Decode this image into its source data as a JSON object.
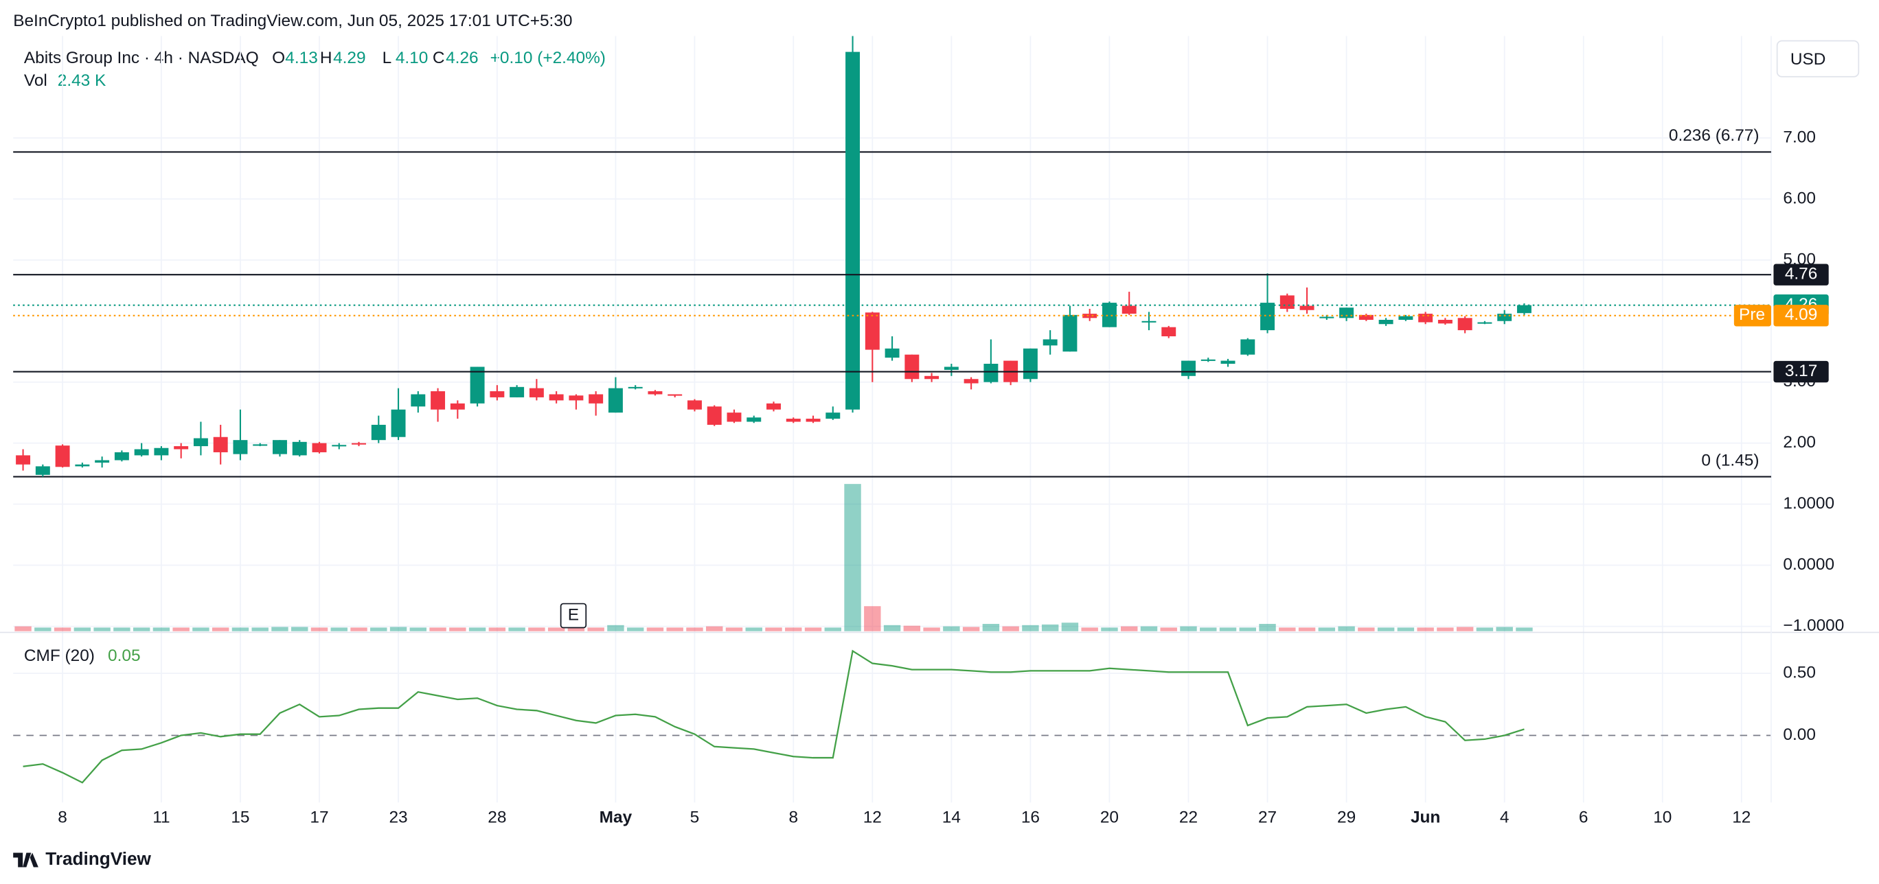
{
  "header": {
    "publisher": "BeInCrypto1 published on TradingView.com, Jun 05, 2025 17:01 UTC+5:30",
    "currency": "USD",
    "brand": "TradingView"
  },
  "chart_data": [
    {
      "type": "candlestick",
      "title": "Abits Group Inc · 4h · NASDAQ",
      "ohlc": [
        {
          "label": "O",
          "value": 4.13
        },
        {
          "label": "H",
          "value": 4.29
        },
        {
          "label": "L",
          "value": 4.1,
          "value_label": "4.10"
        },
        {
          "label": "C",
          "value": 4.26
        }
      ],
      "change": "+0.10 (+2.40%)",
      "up_color": "#089981",
      "down_color": "#f23645",
      "categories": [
        null,
        null,
        "8",
        null,
        null,
        null,
        null,
        "11",
        null,
        null,
        null,
        "15",
        null,
        null,
        null,
        "17",
        null,
        null,
        null,
        "23",
        null,
        null,
        null,
        null,
        "28",
        null,
        null,
        null,
        null,
        null,
        "May",
        null,
        null,
        null,
        "5",
        null,
        null,
        null,
        null,
        "8",
        null,
        null,
        null,
        "12",
        null,
        null,
        null,
        "14",
        null,
        null,
        null,
        "16",
        null,
        null,
        null,
        "20",
        null,
        null,
        null,
        "22",
        null,
        null,
        null,
        "27",
        null,
        null,
        null,
        "29",
        null,
        null,
        null,
        "Jun",
        null,
        null,
        null,
        "4",
        null,
        null,
        null,
        "6",
        null,
        null,
        null,
        "10",
        null,
        null,
        null,
        "12",
        null
      ],
      "open": [
        1.8,
        1.48,
        1.96,
        1.62,
        1.68,
        1.72,
        1.8,
        1.8,
        1.95,
        1.95,
        2.1,
        1.82,
        1.97,
        1.82,
        1.8,
        2.0,
        1.95,
        2.0,
        2.05,
        2.1,
        2.6,
        2.85,
        2.65,
        2.65,
        2.85,
        2.75,
        2.9,
        2.8,
        2.78,
        2.8,
        2.5,
        2.9,
        2.85,
        2.8,
        2.7,
        2.6,
        2.5,
        2.35,
        2.65,
        2.4,
        2.4,
        2.4,
        2.55,
        4.14,
        3.4,
        3.45,
        3.1,
        3.2,
        3.05,
        3.0,
        3.35,
        3.05,
        3.6,
        3.5,
        4.12,
        3.9,
        4.25,
        3.98,
        3.9,
        3.1,
        3.35,
        3.3,
        3.45,
        3.85,
        4.42,
        4.25,
        4.05,
        4.05,
        4.1,
        3.95,
        4.02,
        4.12,
        4.02,
        4.05,
        3.96,
        4.0,
        4.13,
        null,
        null,
        null,
        null,
        null,
        null,
        null,
        null,
        null,
        null,
        null,
        null
      ],
      "high": [
        1.9,
        1.65,
        1.98,
        1.68,
        1.78,
        1.88,
        2.0,
        1.95,
        2.0,
        2.35,
        2.3,
        2.55,
        2.0,
        2.05,
        2.05,
        2.02,
        2.0,
        2.02,
        2.45,
        2.9,
        2.85,
        2.9,
        2.7,
        3.25,
        2.95,
        2.95,
        3.05,
        2.85,
        2.8,
        2.85,
        3.08,
        2.95,
        2.87,
        2.8,
        2.72,
        2.62,
        2.55,
        2.45,
        2.68,
        2.42,
        2.45,
        2.6,
        8.67,
        4.15,
        3.75,
        3.45,
        3.15,
        3.3,
        3.08,
        3.7,
        3.35,
        3.55,
        3.85,
        4.25,
        4.2,
        4.32,
        4.48,
        4.15,
        3.92,
        3.35,
        3.4,
        3.38,
        3.72,
        4.78,
        4.45,
        4.55,
        4.1,
        4.22,
        4.12,
        4.05,
        4.1,
        4.15,
        4.05,
        4.08,
        4.0,
        4.18,
        4.29,
        null,
        null,
        null,
        null,
        null,
        null,
        null,
        null,
        null,
        null,
        null,
        null
      ],
      "low": [
        1.55,
        1.45,
        1.6,
        1.6,
        1.6,
        1.7,
        1.78,
        1.72,
        1.75,
        1.8,
        1.65,
        1.72,
        1.95,
        1.78,
        1.78,
        1.83,
        1.9,
        1.95,
        2.0,
        2.05,
        2.5,
        2.35,
        2.4,
        2.6,
        2.7,
        2.75,
        2.7,
        2.65,
        2.55,
        2.45,
        2.5,
        2.88,
        2.78,
        2.75,
        2.52,
        2.28,
        2.33,
        2.33,
        2.52,
        2.33,
        2.33,
        2.38,
        2.5,
        3.0,
        3.35,
        3.0,
        3.0,
        3.1,
        2.88,
        2.98,
        2.95,
        3.0,
        3.45,
        3.5,
        4.0,
        3.9,
        4.1,
        3.85,
        3.72,
        3.05,
        3.33,
        3.25,
        3.43,
        3.8,
        4.15,
        4.12,
        4.02,
        4.0,
        4.0,
        3.92,
        4.0,
        3.95,
        3.94,
        3.8,
        3.95,
        3.95,
        4.1,
        null,
        null,
        null,
        null,
        null,
        null,
        null,
        null,
        null,
        null,
        null,
        null
      ],
      "close": [
        1.65,
        1.62,
        1.61,
        1.65,
        1.72,
        1.85,
        1.9,
        1.92,
        1.9,
        2.08,
        1.85,
        2.05,
        1.98,
        2.05,
        2.02,
        1.85,
        1.97,
        1.98,
        2.3,
        2.55,
        2.8,
        2.55,
        2.55,
        3.25,
        2.75,
        2.92,
        2.75,
        2.7,
        2.7,
        2.65,
        2.9,
        2.92,
        2.8,
        2.78,
        2.55,
        2.3,
        2.35,
        2.42,
        2.55,
        2.35,
        2.35,
        2.5,
        8.41,
        3.53,
        3.55,
        3.05,
        3.05,
        3.25,
        2.98,
        3.3,
        3.0,
        3.55,
        3.7,
        4.1,
        4.05,
        4.3,
        4.12,
        4.0,
        3.75,
        3.35,
        3.37,
        3.35,
        3.7,
        4.3,
        4.2,
        4.18,
        4.07,
        4.22,
        4.02,
        4.02,
        4.08,
        3.98,
        3.96,
        3.85,
        3.98,
        4.12,
        4.26,
        null,
        null,
        null,
        null,
        null,
        null,
        null,
        null,
        null,
        null,
        null,
        null
      ],
      "ylim": [
        1.41,
        8.67
      ],
      "yticks": [
        {
          "value": 2,
          "label": "2.00"
        },
        {
          "value": 3,
          "label": "3.00"
        },
        {
          "value": 5,
          "label": "5.00"
        },
        {
          "value": 6,
          "label": "6.00"
        },
        {
          "value": 7,
          "label": "7.00"
        }
      ],
      "levels": [
        {
          "value": 6.77,
          "label": "0.236 (6.77)"
        },
        {
          "value": 1.45,
          "label": "0 (1.45)"
        }
      ],
      "hlines": [
        4.76,
        3.17
      ],
      "last_price": 4.26,
      "premarket": {
        "label": "Pre",
        "value": 4.09,
        "color": "#ff9800"
      },
      "grid": true
    },
    {
      "type": "bar",
      "title": "Vol",
      "last_value_label": "2.43 K",
      "values": [
        -1.0,
        -1.02,
        -1.02,
        -1.02,
        -1.02,
        -1.02,
        -1.02,
        -1.02,
        -1.02,
        -1.02,
        -1.02,
        -1.02,
        -1.02,
        -1.01,
        -1.01,
        -1.02,
        -1.02,
        -1.02,
        -1.02,
        -1.01,
        -1.02,
        -1.02,
        -1.02,
        -1.02,
        -1.02,
        -1.02,
        -1.02,
        -1.02,
        -1.02,
        -1.02,
        -0.98,
        -1.02,
        -1.02,
        -1.02,
        -1.02,
        -1.0,
        -1.02,
        -1.02,
        -1.02,
        -1.02,
        -1.02,
        -1.02,
        1.33,
        -0.67,
        -0.98,
        -0.99,
        -1.02,
        -1.0,
        -1.01,
        -0.96,
        -1.0,
        -0.98,
        -0.97,
        -0.94,
        -1.02,
        -1.02,
        -1.0,
        -1.0,
        -1.02,
        -1.0,
        -1.02,
        -1.02,
        -1.02,
        -0.96,
        -1.02,
        -1.02,
        -1.02,
        -1.0,
        -1.02,
        -1.02,
        -1.02,
        -1.02,
        -1.02,
        -1.01,
        -1.02,
        -1.01,
        -1.02,
        null,
        null,
        null,
        null,
        null,
        null,
        null,
        null,
        null,
        null,
        null,
        null
      ],
      "ylim": [
        -1.08,
        1.37
      ],
      "yticks": [
        {
          "value": 1,
          "label": "1.0000"
        },
        {
          "value": 0,
          "label": "0.0000"
        },
        {
          "value": -1,
          "label": "−1.0000"
        }
      ],
      "events": [
        "E"
      ]
    },
    {
      "type": "line",
      "title": "CMF (20)",
      "last_value": 0.05,
      "color": "#43a047",
      "values": [
        -0.25,
        -0.23,
        -0.3,
        -0.38,
        -0.2,
        -0.12,
        -0.11,
        -0.06,
        0.0,
        0.02,
        -0.01,
        0.01,
        0.01,
        0.18,
        0.25,
        0.15,
        0.16,
        0.21,
        0.22,
        0.22,
        0.35,
        0.32,
        0.29,
        0.3,
        0.24,
        0.21,
        0.2,
        0.16,
        0.12,
        0.1,
        0.16,
        0.17,
        0.15,
        0.07,
        0.01,
        -0.09,
        -0.1,
        -0.11,
        -0.14,
        -0.17,
        -0.18,
        -0.18,
        0.68,
        0.58,
        0.56,
        0.53,
        0.53,
        0.53,
        0.52,
        0.51,
        0.51,
        0.52,
        0.52,
        0.52,
        0.52,
        0.54,
        0.53,
        0.52,
        0.51,
        0.51,
        0.51,
        0.51,
        0.08,
        0.14,
        0.15,
        0.23,
        0.24,
        0.25,
        0.18,
        0.21,
        0.23,
        0.15,
        0.11,
        -0.04,
        -0.03,
        0.0,
        0.05,
        null,
        null,
        null,
        null,
        null,
        null,
        null,
        null,
        null,
        null,
        null,
        null
      ],
      "ylim": [
        -0.54,
        0.81
      ],
      "yticks": [
        {
          "value": 0.5,
          "label": "0.50"
        },
        {
          "value": 0,
          "label": "0.00"
        }
      ]
    }
  ]
}
